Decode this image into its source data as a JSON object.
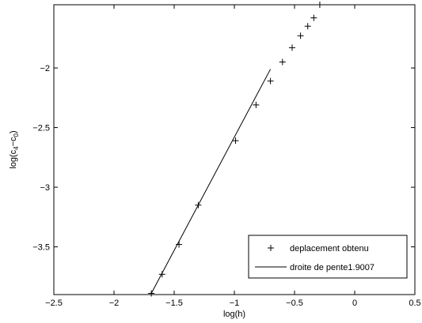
{
  "chart_data": {
    "type": "scatter",
    "xlabel": "log(h)",
    "ylabel": {
      "base": "log(c",
      "sub1": "4",
      "mid": "−c",
      "sub2": "0",
      "end": ")"
    },
    "xlim": [
      -2.5,
      0.5
    ],
    "ylim": [
      -3.9,
      -1.47
    ],
    "x_ticks": [
      -2.5,
      -2,
      -1.5,
      -1,
      -0.5,
      0,
      0.5
    ],
    "x_tick_labels": [
      "−2.5",
      "−2",
      "−1.5",
      "−1",
      "−0.5",
      "0",
      "0.5"
    ],
    "y_ticks": [
      -2,
      -2.5,
      -3,
      -3.5
    ],
    "y_tick_labels": [
      "−2",
      "−2.5",
      "−3",
      "−3.5"
    ],
    "grid": false,
    "legend_position": "bottom-right",
    "series": [
      {
        "name": "deplacement obtenu",
        "marker": "+",
        "x": [
          -1.69,
          -1.6,
          -1.46,
          -1.3,
          -0.99,
          -0.82,
          -0.7,
          -0.6,
          -0.52,
          -0.45,
          -0.39,
          -0.34,
          -0.29
        ],
        "y": [
          -3.89,
          -3.73,
          -3.48,
          -3.15,
          -2.61,
          -2.31,
          -2.11,
          -1.95,
          -1.83,
          -1.73,
          -1.65,
          -1.58,
          -1.47
        ]
      },
      {
        "name": "droite de pente1.9007",
        "line": "solid",
        "x": [
          -1.69,
          -0.7
        ],
        "y": [
          -3.89,
          -2.01
        ]
      }
    ]
  }
}
